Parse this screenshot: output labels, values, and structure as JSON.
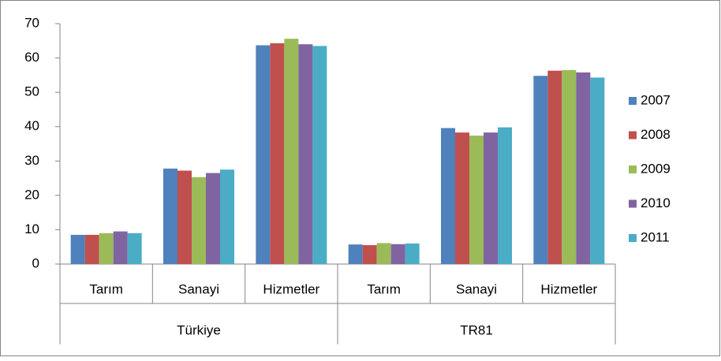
{
  "chart_data": {
    "type": "bar",
    "groups": [
      {
        "name": "Türkiye",
        "categories": [
          "Tarım",
          "Sanayi",
          "Hizmetler"
        ]
      },
      {
        "name": "TR81",
        "categories": [
          "Tarım",
          "Sanayi",
          "Hizmetler"
        ]
      }
    ],
    "series": [
      {
        "name": "2007",
        "color": "#4f81bd",
        "values": [
          8.5,
          27.8,
          63.7,
          5.7,
          39.6,
          54.8
        ]
      },
      {
        "name": "2008",
        "color": "#c0504d",
        "values": [
          8.5,
          27.2,
          64.3,
          5.5,
          38.3,
          56.3
        ]
      },
      {
        "name": "2009",
        "color": "#9bbb59",
        "values": [
          9.0,
          25.3,
          65.6,
          6.1,
          37.4,
          56.5
        ]
      },
      {
        "name": "2010",
        "color": "#8064a2",
        "values": [
          9.5,
          26.5,
          64.0,
          5.8,
          38.3,
          55.8
        ]
      },
      {
        "name": "2011",
        "color": "#4bacc6",
        "values": [
          9.0,
          27.5,
          63.5,
          6.0,
          39.8,
          54.3
        ]
      }
    ],
    "ylim": [
      0,
      70
    ],
    "yticks": [
      0,
      10,
      20,
      30,
      40,
      50,
      60,
      70
    ],
    "grid": false,
    "legend": "right"
  }
}
